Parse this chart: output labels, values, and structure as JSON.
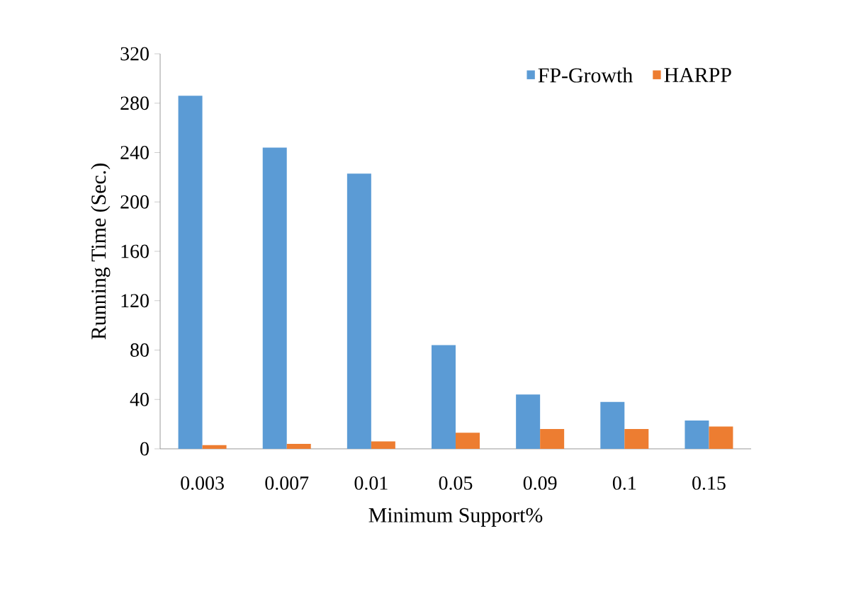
{
  "chart_data": {
    "type": "bar",
    "xlabel": "Minimum Support%",
    "ylabel": "Running Time (Sec.)",
    "categories": [
      "0.003",
      "0.007",
      "0.01",
      "0.05",
      "0.09",
      "0.1",
      "0.15"
    ],
    "series": [
      {
        "name": "FP-Growth",
        "color": "#5b9bd5",
        "values": [
          286,
          244,
          223,
          84,
          44,
          38,
          23
        ]
      },
      {
        "name": "HARPP",
        "color": "#ed7d31",
        "values": [
          3,
          4,
          6,
          13,
          16,
          16,
          18
        ]
      }
    ],
    "ylim": [
      0,
      320
    ],
    "yticks": [
      0,
      40,
      80,
      120,
      160,
      200,
      240,
      280,
      320
    ],
    "legend": "top right",
    "grid": false
  }
}
